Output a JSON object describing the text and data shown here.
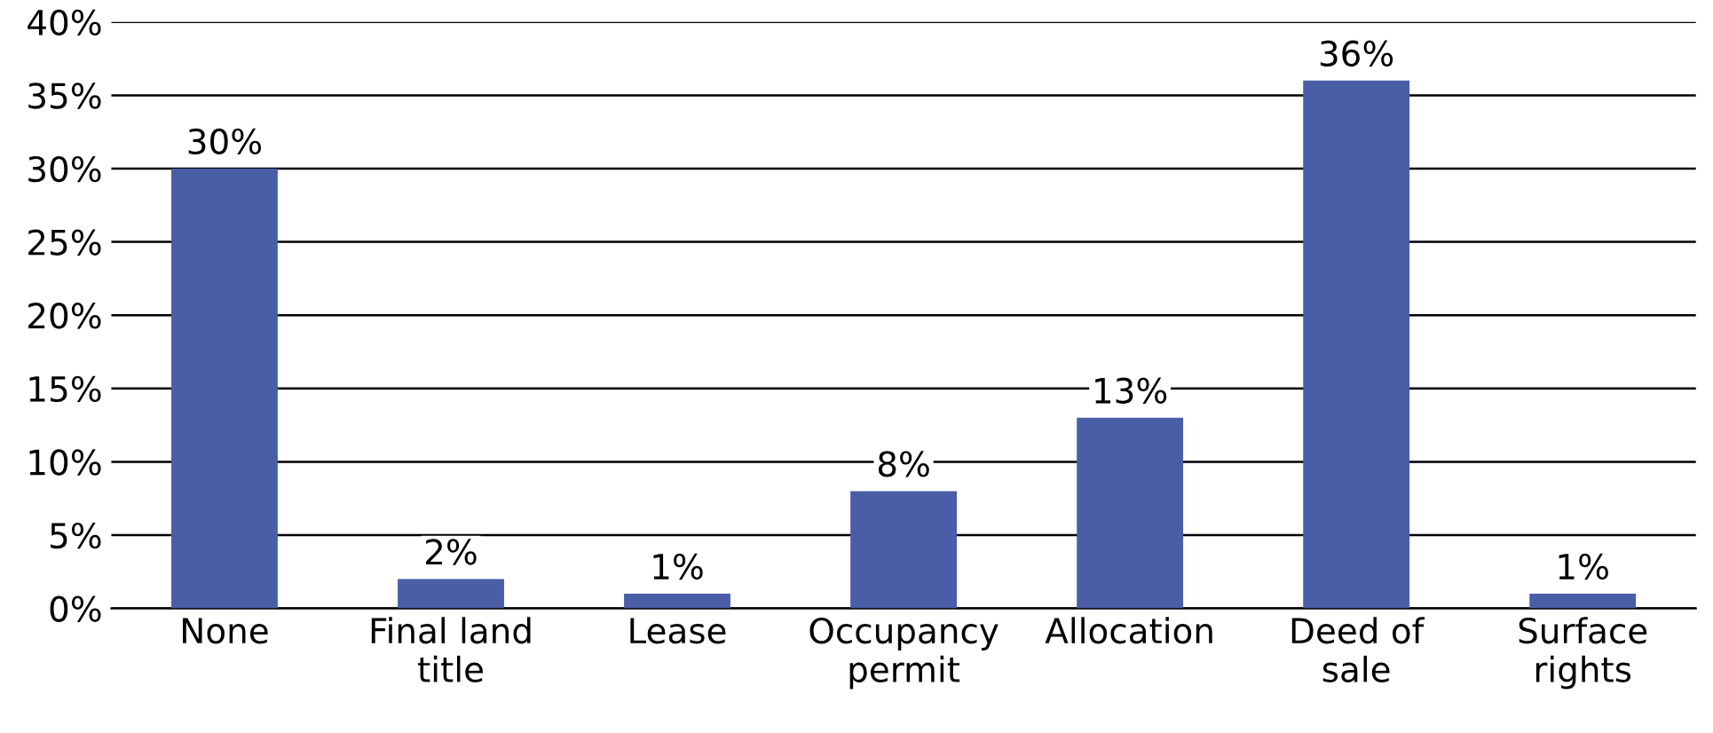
{
  "chart_data": {
    "type": "bar",
    "categories": [
      "None",
      "Final land\ntitle",
      "Lease",
      "Occupancy\npermit",
      "Allocation",
      "Deed of\nsale",
      "Surface\nrights"
    ],
    "values": [
      30,
      2,
      1,
      8,
      13,
      36,
      1
    ],
    "color": "#4a5ea8",
    "value_labels": [
      "30%",
      "2%",
      "1%",
      "8%",
      "13%",
      "36%",
      "1%"
    ],
    "ylim": [
      0,
      40
    ],
    "yticks": [
      {
        "value": 0,
        "label": "0%"
      },
      {
        "value": 5,
        "label": "5%"
      },
      {
        "value": 10,
        "label": "10%"
      },
      {
        "value": 15,
        "label": "15%"
      },
      {
        "value": 20,
        "label": "20%"
      },
      {
        "value": 25,
        "label": "25%"
      },
      {
        "value": 30,
        "label": "30%"
      },
      {
        "value": 35,
        "label": "35%"
      },
      {
        "value": 40,
        "label": "40%"
      }
    ],
    "grid": "y",
    "legend": false
  }
}
